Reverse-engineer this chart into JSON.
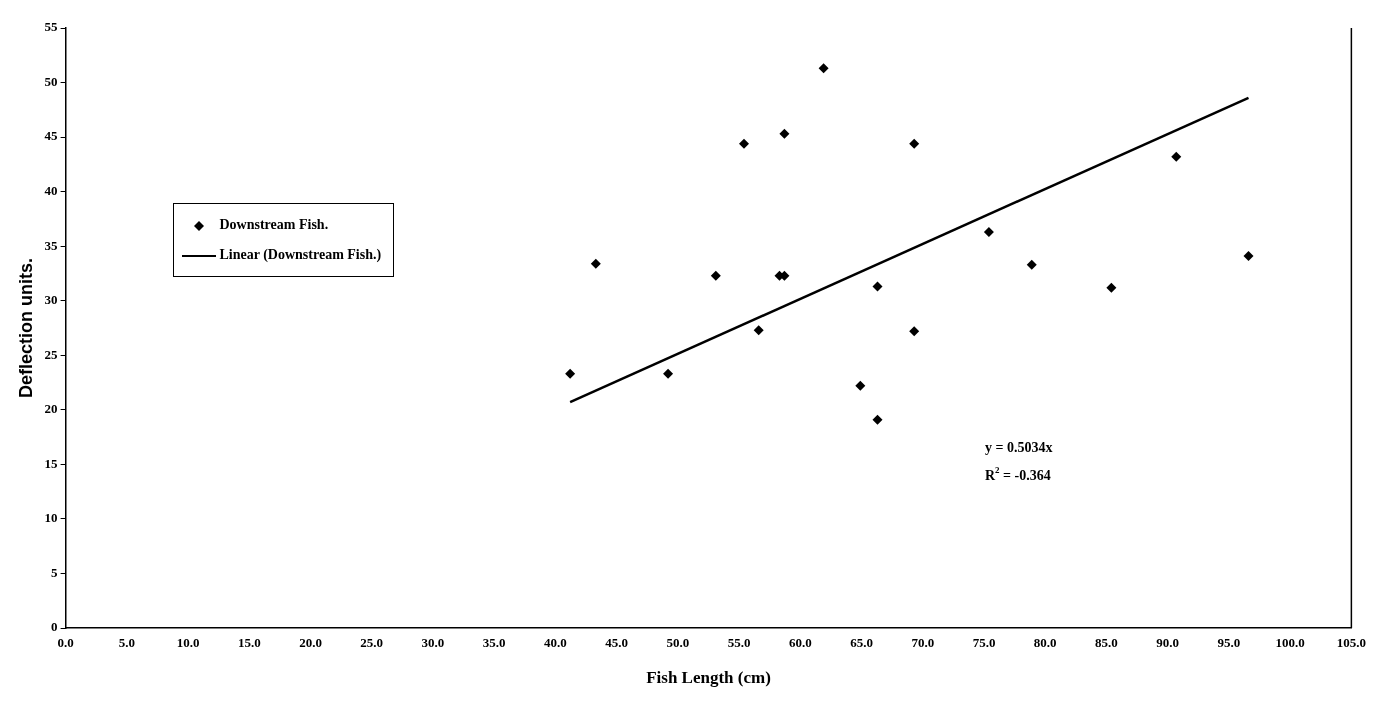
{
  "chart_data": {
    "type": "scatter",
    "xlabel": "Fish Length (cm)",
    "ylabel": "Deflection units.",
    "xlim": [
      0,
      105
    ],
    "xticks": [
      {
        "value": 0,
        "label": "0.0"
      },
      {
        "value": 5,
        "label": "5.0"
      },
      {
        "value": 10,
        "label": "10.0"
      },
      {
        "value": 15,
        "label": "15.0"
      },
      {
        "value": 20,
        "label": "20.0"
      },
      {
        "value": 25,
        "label": "25.0"
      },
      {
        "value": 30,
        "label": "30.0"
      },
      {
        "value": 35,
        "label": "35.0"
      },
      {
        "value": 40,
        "label": "40.0"
      },
      {
        "value": 45,
        "label": "45.0"
      },
      {
        "value": 50,
        "label": "50.0"
      },
      {
        "value": 55,
        "label": "55.0"
      },
      {
        "value": 60,
        "label": "60.0"
      },
      {
        "value": 65,
        "label": "65.0"
      },
      {
        "value": 70,
        "label": "70.0"
      },
      {
        "value": 75,
        "label": "75.0"
      },
      {
        "value": 80,
        "label": "80.0"
      },
      {
        "value": 85,
        "label": "85.0"
      },
      {
        "value": 90,
        "label": "90.0"
      },
      {
        "value": 95,
        "label": "95.0"
      },
      {
        "value": 100,
        "label": "100.0"
      },
      {
        "value": 105,
        "label": "105.0"
      }
    ],
    "ylim": [
      0,
      55
    ],
    "yticks": [
      0,
      5,
      10,
      15,
      20,
      25,
      30,
      35,
      40,
      45,
      50,
      55
    ],
    "grid": false,
    "legend": "left",
    "marker": "diamond",
    "series": [
      {
        "name": "Downstream Fish.",
        "color": "#000000",
        "x": [
          41.2,
          43.3,
          49.2,
          53.1,
          55.4,
          56.6,
          58.3,
          58.7,
          58.7,
          61.9,
          64.9,
          66.3,
          66.3,
          69.3,
          69.3,
          75.4,
          78.9,
          85.4,
          90.7,
          96.6
        ],
        "values": [
          23.3,
          33.4,
          23.3,
          32.3,
          44.4,
          27.3,
          32.3,
          32.3,
          45.3,
          51.3,
          22.2,
          31.3,
          19.1,
          44.4,
          27.2,
          36.3,
          33.3,
          31.2,
          43.2,
          34.1
        ]
      },
      {
        "name": "Linear (Downstream Fish.)",
        "type": "line",
        "color": "#000000",
        "marker": "none",
        "line_style": "solid",
        "x": [
          41.2,
          96.6
        ],
        "values": [
          20.7,
          48.6
        ]
      }
    ],
    "annotations": [
      "y = 0.5034x",
      "R$^{2}$ = -0.364"
    ]
  }
}
